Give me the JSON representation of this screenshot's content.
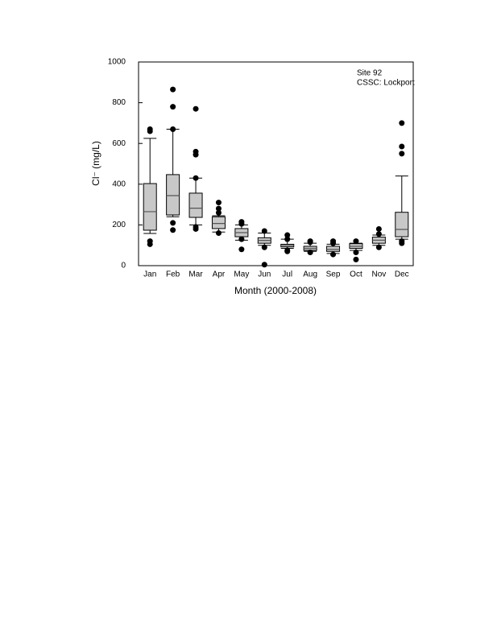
{
  "chart_data": {
    "type": "box",
    "y_label": "Cl⁻ (mg/L)",
    "x_label": "Month (2000-2008)",
    "annotations": [
      "Site 92",
      "CSSC: Lockport"
    ],
    "categories": [
      "Jan",
      "Feb",
      "Mar",
      "Apr",
      "May",
      "Jun",
      "Jul",
      "Aug",
      "Sep",
      "Oct",
      "Nov",
      "Dec"
    ],
    "whisker_low": [
      158,
      240,
      200,
      165,
      125,
      100,
      85,
      70,
      60,
      75,
      100,
      130
    ],
    "q1": [
      174,
      249,
      237,
      182,
      142,
      110,
      92,
      75,
      70,
      85,
      110,
      142
    ],
    "median": [
      265,
      344,
      282,
      207,
      162,
      124,
      99,
      85,
      80,
      95,
      125,
      178
    ],
    "q3": [
      403,
      447,
      356,
      240,
      182,
      137,
      105,
      95,
      95,
      108,
      140,
      262
    ],
    "whisker_high": [
      625,
      670,
      430,
      245,
      200,
      160,
      130,
      110,
      105,
      110,
      150,
      440
    ],
    "outliers": [
      [
        670,
        660,
        120,
        105
      ],
      [
        865,
        780,
        670,
        210,
        175
      ],
      [
        770,
        560,
        545,
        430,
        190,
        180
      ],
      [
        310,
        280,
        260,
        160
      ],
      [
        215,
        205,
        130,
        80
      ],
      [
        170,
        90,
        5
      ],
      [
        150,
        130,
        75,
        70
      ],
      [
        120,
        115,
        65
      ],
      [
        120,
        110,
        55
      ],
      [
        120,
        65,
        30
      ],
      [
        180,
        155,
        90
      ],
      [
        700,
        585,
        550,
        120,
        110
      ]
    ],
    "box_color": "#c8c8c8",
    "ylim": [
      0,
      1000
    ],
    "yticks": [
      0,
      200,
      400,
      600,
      800,
      1000
    ]
  }
}
